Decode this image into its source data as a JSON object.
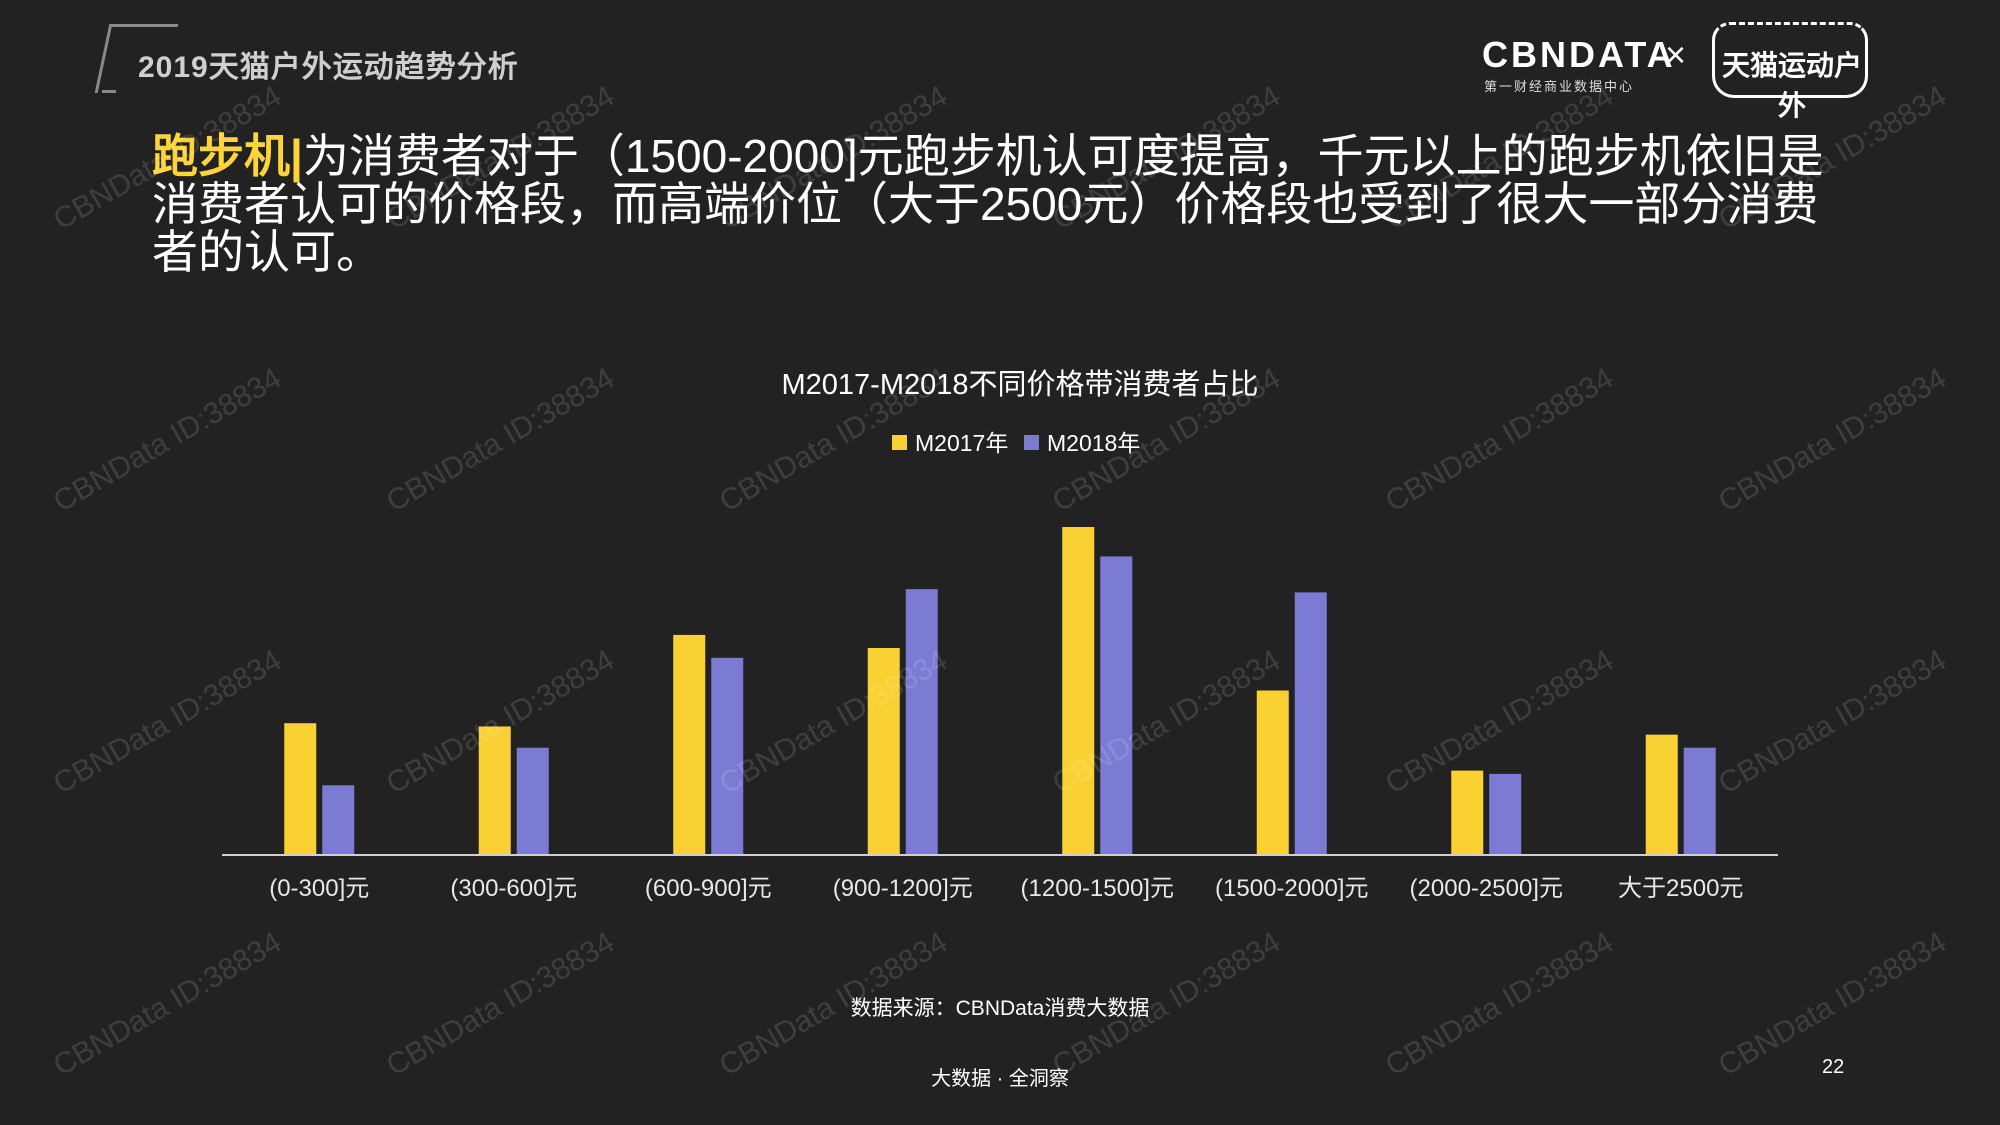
{
  "header": {
    "report_title": "2019天猫户外运动趋势分析",
    "logo_cbn": "CBNDATA",
    "logo_cbn_sub": "第一财经商业数据中心",
    "logo_x": "×",
    "logo_tmall": "天猫运动户外"
  },
  "headline": {
    "keyword": "跑步机|",
    "text": "为消费者对于（1500-2000]元跑步机认可度提高，千元以上的跑步机依旧是消费者认可的价格段，而高端价位（大于2500元）价格段也受到了很大一部分消费者的认可。"
  },
  "chart_data": {
    "type": "bar",
    "title": "M2017-M2018不同价格带消费者占比",
    "categories": [
      "(0-300]元",
      "(300-600]元",
      "(600-900]元",
      "(900-1200]元",
      "(1200-1500]元",
      "(1500-2000]元",
      "(2000-2500]元",
      "大于2500元"
    ],
    "series": [
      {
        "name": "M2017年",
        "color": "#f9d133",
        "values": [
          40,
          39,
          67,
          63,
          100,
          50,
          25.5,
          36.5
        ]
      },
      {
        "name": "M2018年",
        "color": "#7b7bd4",
        "values": [
          21,
          32.5,
          60,
          81,
          91,
          80,
          24.5,
          32.5
        ]
      }
    ],
    "ylim": [
      0,
      100
    ],
    "legend_position": "top-center",
    "grid": false,
    "xlabel": "",
    "ylabel": ""
  },
  "source": "数据来源：CBNData消费大数据",
  "footer": "大数据 · 全洞察",
  "page_number": "22",
  "watermark": "CBNData ID:38834"
}
